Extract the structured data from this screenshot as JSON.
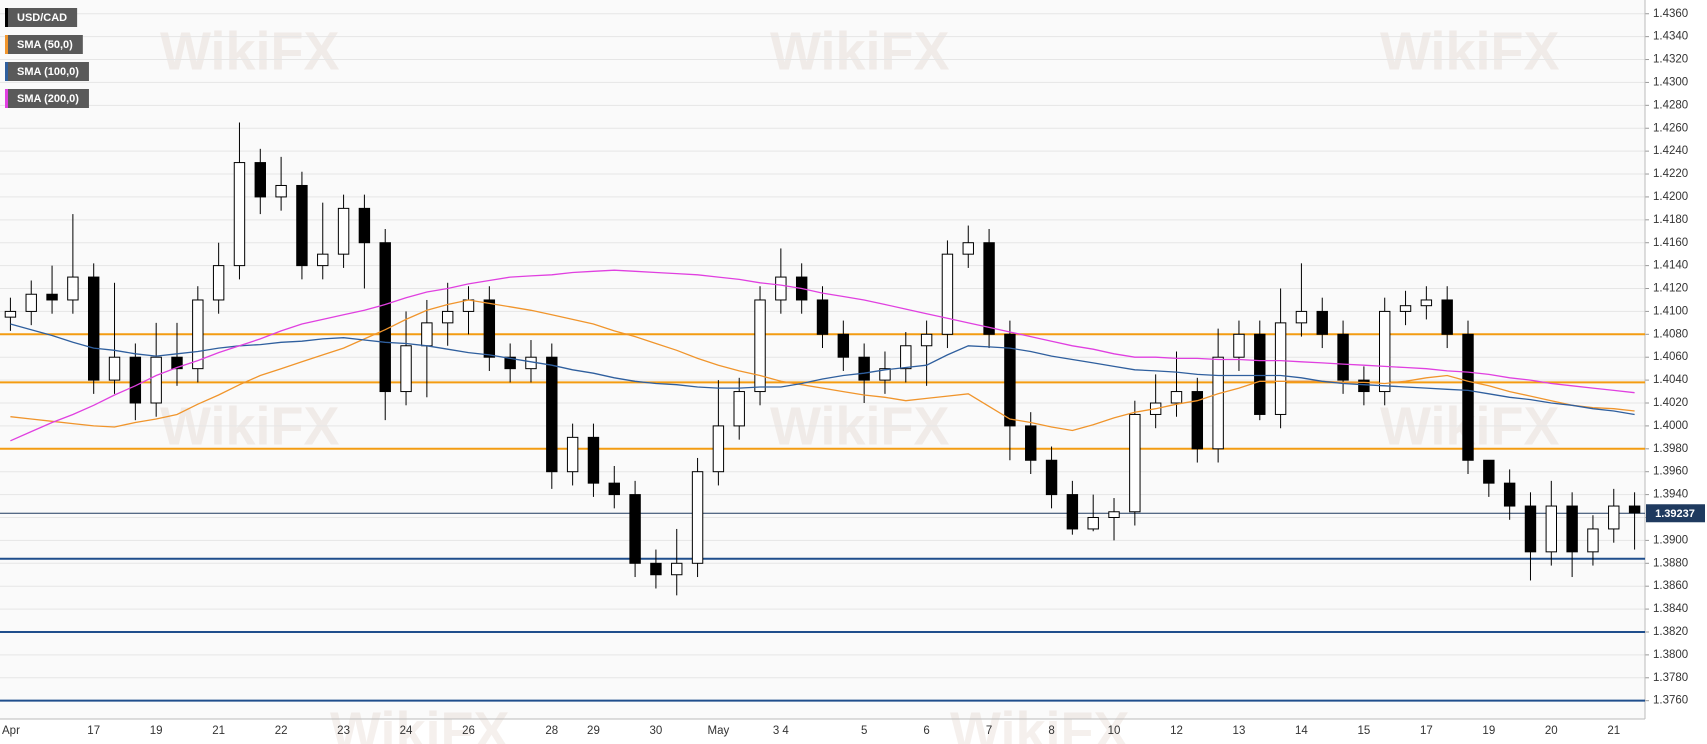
{
  "chart_data": {
    "type": "candlestick",
    "title": "USD/CAD",
    "categories": [
      "Apr",
      null,
      null,
      null,
      "17",
      null,
      null,
      "19",
      null,
      null,
      "21",
      null,
      null,
      "22",
      null,
      null,
      "23",
      null,
      null,
      "24",
      null,
      null,
      "26",
      null,
      null,
      null,
      "28",
      null,
      "29",
      null,
      null,
      "30",
      null,
      null,
      "May",
      null,
      null,
      "3 4",
      null,
      null,
      null,
      "5",
      null,
      null,
      "6",
      null,
      null,
      "7",
      null,
      null,
      "8",
      null,
      null,
      "10",
      null,
      null,
      "12",
      null,
      null,
      "13",
      null,
      null,
      "14",
      null,
      null,
      "15",
      null,
      null,
      "17",
      null,
      null,
      "19",
      null,
      null,
      "20",
      null,
      null,
      "21",
      null
    ],
    "open": [
      1.4095,
      1.41,
      1.4115,
      1.411,
      1.413,
      1.404,
      1.406,
      1.402,
      1.406,
      1.405,
      1.411,
      1.414,
      1.423,
      1.42,
      1.421,
      1.414,
      1.415,
      1.419,
      1.416,
      1.403,
      1.407,
      1.409,
      1.41,
      1.411,
      1.406,
      1.405,
      1.406,
      1.396,
      1.399,
      1.395,
      1.394,
      1.388,
      1.387,
      1.388,
      1.396,
      1.4,
      1.403,
      1.411,
      1.413,
      1.411,
      1.408,
      1.406,
      1.404,
      1.405,
      1.407,
      1.408,
      1.415,
      1.416,
      1.408,
      1.4,
      1.397,
      1.394,
      1.391,
      1.392,
      1.3925,
      1.401,
      1.402,
      1.403,
      1.398,
      1.406,
      1.408,
      1.401,
      1.409,
      1.41,
      1.408,
      1.404,
      1.403,
      1.41,
      1.4105,
      1.411,
      1.408,
      1.397,
      1.395,
      1.393,
      1.389,
      1.393,
      1.389,
      1.391,
      1.393
    ],
    "high": [
      1.4112,
      1.4127,
      1.414,
      1.4185,
      1.4142,
      1.4125,
      1.4072,
      1.409,
      1.409,
      1.4122,
      1.416,
      1.4265,
      1.4242,
      1.4235,
      1.4222,
      1.4195,
      1.4202,
      1.4202,
      1.4172,
      1.41,
      1.411,
      1.4125,
      1.4122,
      1.4122,
      1.4072,
      1.4075,
      1.4072,
      1.4002,
      1.4002,
      1.3965,
      1.3952,
      1.3892,
      1.391,
      1.3972,
      1.404,
      1.4042,
      1.4122,
      1.4155,
      1.4142,
      1.4122,
      1.4092,
      1.4072,
      1.4065,
      1.4082,
      1.4092,
      1.4162,
      1.4175,
      1.4172,
      1.4092,
      1.4012,
      1.3982,
      1.3952,
      1.394,
      1.3937,
      1.4022,
      1.4045,
      1.4065,
      1.4042,
      1.4085,
      1.4092,
      1.4092,
      1.412,
      1.4142,
      1.4112,
      1.4092,
      1.4052,
      1.4112,
      1.4118,
      1.4122,
      1.4122,
      1.4092,
      1.397,
      1.3962,
      1.3942,
      1.3952,
      1.3942,
      1.3922,
      1.3945,
      1.3942
    ],
    "low": [
      1.4083,
      1.4088,
      1.4098,
      1.4098,
      1.4028,
      1.4028,
      1.4005,
      1.4008,
      1.4035,
      1.4038,
      1.4098,
      1.4128,
      1.4185,
      1.4188,
      1.4128,
      1.4128,
      1.4138,
      1.412,
      1.4005,
      1.4018,
      1.4025,
      1.407,
      1.408,
      1.4048,
      1.4038,
      1.4038,
      1.3945,
      1.3948,
      1.3938,
      1.3928,
      1.3868,
      1.3858,
      1.3852,
      1.3868,
      1.3948,
      1.3988,
      1.4018,
      1.4098,
      1.4098,
      1.4068,
      1.4048,
      1.402,
      1.4028,
      1.4038,
      1.4035,
      1.4068,
      1.4138,
      1.4068,
      1.397,
      1.3958,
      1.3928,
      1.3905,
      1.3908,
      1.39,
      1.3913,
      1.3998,
      1.4008,
      1.3968,
      1.3968,
      1.4048,
      1.4005,
      1.3998,
      1.4078,
      1.4068,
      1.4028,
      1.4018,
      1.4018,
      1.4088,
      1.4093,
      1.4068,
      1.3958,
      1.3938,
      1.3918,
      1.3865,
      1.3878,
      1.3868,
      1.3878,
      1.3898,
      1.3892
    ],
    "close": [
      1.41,
      1.4115,
      1.411,
      1.413,
      1.404,
      1.406,
      1.402,
      1.406,
      1.405,
      1.411,
      1.414,
      1.423,
      1.42,
      1.421,
      1.414,
      1.415,
      1.419,
      1.416,
      1.403,
      1.407,
      1.409,
      1.41,
      1.411,
      1.406,
      1.405,
      1.406,
      1.396,
      1.399,
      1.395,
      1.394,
      1.388,
      1.387,
      1.388,
      1.396,
      1.4,
      1.403,
      1.411,
      1.413,
      1.411,
      1.408,
      1.406,
      1.404,
      1.405,
      1.407,
      1.408,
      1.415,
      1.416,
      1.408,
      1.4,
      1.397,
      1.394,
      1.391,
      1.392,
      1.3925,
      1.401,
      1.402,
      1.403,
      1.398,
      1.406,
      1.408,
      1.401,
      1.409,
      1.41,
      1.408,
      1.404,
      1.403,
      1.41,
      1.4105,
      1.411,
      1.408,
      1.397,
      1.395,
      1.393,
      1.389,
      1.393,
      1.389,
      1.391,
      1.393,
      1.3924
    ],
    "title_color": "#000000",
    "up_color": "#ffffff",
    "down_color": "#000000",
    "overlays": [
      {
        "name": "SMA (50,0)",
        "color": "#f0952c",
        "values": [
          1.4008,
          1.4006,
          1.4004,
          1.4002,
          1.4,
          1.3999,
          1.4003,
          1.4006,
          1.401,
          1.4019,
          1.4027,
          1.4036,
          1.4044,
          1.405,
          1.4056,
          1.4062,
          1.4068,
          1.4076,
          1.4084,
          1.4093,
          1.4101,
          1.4106,
          1.411,
          1.4107,
          1.4104,
          1.4101,
          1.4097,
          1.4093,
          1.4089,
          1.4083,
          1.4078,
          1.4072,
          1.4066,
          1.4059,
          1.4053,
          1.4048,
          1.4044,
          1.4039,
          1.4036,
          1.4033,
          1.403,
          1.4027,
          1.4025,
          1.4022,
          1.4024,
          1.4026,
          1.4028,
          1.4017,
          1.4006,
          1.4003,
          1.3999,
          1.3996,
          1.4001,
          1.4007,
          1.4012,
          1.4015,
          1.4019,
          1.4022,
          1.4028,
          1.4033,
          1.4039,
          1.4039,
          1.4039,
          1.4039,
          1.4038,
          1.4038,
          1.4037,
          1.4039,
          1.4042,
          1.4044,
          1.4039,
          1.4035,
          1.403,
          1.4026,
          1.4022,
          1.4018,
          1.4016,
          1.4015,
          1.4013
        ]
      },
      {
        "name": "SMA (100,0)",
        "color": "#2f5f9e",
        "values": [
          1.4089,
          1.4084,
          1.4079,
          1.4073,
          1.4068,
          1.4066,
          1.4063,
          1.4061,
          1.4063,
          1.4065,
          1.4068,
          1.407,
          1.4071,
          1.4073,
          1.4074,
          1.4076,
          1.4077,
          1.4075,
          1.4073,
          1.4072,
          1.407,
          1.4067,
          1.4064,
          1.4062,
          1.4059,
          1.4056,
          1.4053,
          1.4049,
          1.4046,
          1.4042,
          1.4039,
          1.4037,
          1.4036,
          1.4034,
          1.4033,
          1.4033,
          1.4034,
          1.4034,
          1.4037,
          1.4041,
          1.4044,
          1.4046,
          1.4049,
          1.4051,
          1.4053,
          1.4062,
          1.407,
          1.4069,
          1.4068,
          1.4065,
          1.4061,
          1.4058,
          1.4055,
          1.4052,
          1.4049,
          1.4048,
          1.4047,
          1.4045,
          1.4044,
          1.4044,
          1.4044,
          1.4044,
          1.4042,
          1.4039,
          1.4037,
          1.4036,
          1.4035,
          1.4034,
          1.4033,
          1.4032,
          1.4031,
          1.4028,
          1.4025,
          1.4023,
          1.402,
          1.4018,
          1.4015,
          1.4013,
          1.401
        ]
      },
      {
        "name": "SMA (200,0)",
        "color": "#e040e0",
        "values": [
          1.3987,
          1.3995,
          1.4003,
          1.401,
          1.4018,
          1.4027,
          1.4035,
          1.4044,
          1.4051,
          1.4057,
          1.4064,
          1.407,
          1.4076,
          1.4083,
          1.4089,
          1.4093,
          1.4097,
          1.4101,
          1.4106,
          1.4112,
          1.4117,
          1.412,
          1.4124,
          1.4127,
          1.413,
          1.4131,
          1.4132,
          1.4134,
          1.4135,
          1.4136,
          1.4135,
          1.4134,
          1.4133,
          1.4132,
          1.413,
          1.4128,
          1.4125,
          1.4123,
          1.412,
          1.4116,
          1.4113,
          1.411,
          1.4106,
          1.4102,
          1.4098,
          1.4094,
          1.409,
          1.4086,
          1.4082,
          1.4078,
          1.4074,
          1.407,
          1.4067,
          1.4063,
          1.406,
          1.406,
          1.4059,
          1.4059,
          1.4058,
          1.4058,
          1.4057,
          1.4057,
          1.4056,
          1.4055,
          1.4054,
          1.4053,
          1.4052,
          1.4051,
          1.405,
          1.4048,
          1.4047,
          1.4045,
          1.4042,
          1.404,
          1.4037,
          1.4035,
          1.4033,
          1.4031,
          1.4029
        ]
      }
    ],
    "levels": [
      {
        "value": 1.408,
        "color": "#f39c12"
      },
      {
        "value": 1.4038,
        "color": "#f39c12"
      },
      {
        "value": 1.398,
        "color": "#f39c12"
      },
      {
        "value": 1.3884,
        "color": "#1f4e8c"
      },
      {
        "value": 1.382,
        "color": "#1f4e8c"
      },
      {
        "value": 1.376,
        "color": "#1f4e8c"
      }
    ],
    "last_price": 1.39237,
    "last_price_color": "#1f3a5f",
    "ylim": [
      1.3744,
      1.4372
    ],
    "yticks": [
      {
        "value": 1.376,
        "label": "1.3760"
      },
      {
        "value": 1.378,
        "label": "1.3780"
      },
      {
        "value": 1.38,
        "label": "1.3800"
      },
      {
        "value": 1.382,
        "label": "1.3820"
      },
      {
        "value": 1.384,
        "label": "1.3840"
      },
      {
        "value": 1.386,
        "label": "1.3860"
      },
      {
        "value": 1.388,
        "label": "1.3880"
      },
      {
        "value": 1.39,
        "label": "1.3900"
      },
      {
        "value": 1.392,
        "label": "1.3920"
      },
      {
        "value": 1.394,
        "label": "1.3940"
      },
      {
        "value": 1.396,
        "label": "1.3960"
      },
      {
        "value": 1.398,
        "label": "1.3980"
      },
      {
        "value": 1.4,
        "label": "1.4000"
      },
      {
        "value": 1.402,
        "label": "1.4020"
      },
      {
        "value": 1.404,
        "label": "1.4040"
      },
      {
        "value": 1.406,
        "label": "1.4060"
      },
      {
        "value": 1.408,
        "label": "1.4080"
      },
      {
        "value": 1.41,
        "label": "1.4100"
      },
      {
        "value": 1.412,
        "label": "1.4120"
      },
      {
        "value": 1.414,
        "label": "1.4140"
      },
      {
        "value": 1.416,
        "label": "1.4160"
      },
      {
        "value": 1.418,
        "label": "1.4180"
      },
      {
        "value": 1.42,
        "label": "1.4200"
      },
      {
        "value": 1.422,
        "label": "1.4220"
      },
      {
        "value": 1.424,
        "label": "1.4240"
      },
      {
        "value": 1.426,
        "label": "1.4260"
      },
      {
        "value": 1.428,
        "label": "1.4280"
      },
      {
        "value": 1.43,
        "label": "1.4300"
      },
      {
        "value": 1.432,
        "label": "1.4320"
      },
      {
        "value": 1.434,
        "label": "1.4340"
      },
      {
        "value": 1.436,
        "label": "1.4360"
      }
    ],
    "grid": true,
    "legend": "top-left",
    "watermark": "WikiFX"
  }
}
